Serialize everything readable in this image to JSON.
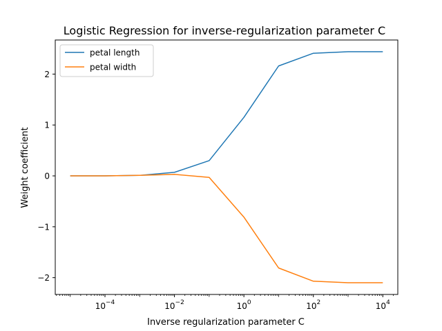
{
  "chart_data": {
    "type": "line",
    "title": "Logistic Regression for inverse-regularization parameter C",
    "xlabel": "Inverse regularization parameter C",
    "ylabel": "Weight coefficient",
    "x_scale": "log",
    "x": [
      1e-05,
      0.0001,
      0.001,
      0.01,
      0.1,
      1,
      10,
      100,
      1000,
      10000
    ],
    "xlim": [
      3.7e-06,
      27000
    ],
    "ylim": [
      -2.33,
      2.67
    ],
    "xticks": [
      {
        "value": 0.0001,
        "base": "10",
        "exp": "−4"
      },
      {
        "value": 0.01,
        "base": "10",
        "exp": "−2"
      },
      {
        "value": 1,
        "base": "10",
        "exp": "0"
      },
      {
        "value": 100,
        "base": "10",
        "exp": "2"
      },
      {
        "value": 10000,
        "base": "10",
        "exp": "4"
      }
    ],
    "yticks": [
      {
        "value": -2,
        "label": "−2"
      },
      {
        "value": -1,
        "label": "−1"
      },
      {
        "value": 0,
        "label": "0"
      },
      {
        "value": 1,
        "label": "1"
      },
      {
        "value": 2,
        "label": "2"
      }
    ],
    "grid": false,
    "legend_position": "top-left",
    "series": [
      {
        "name": "petal length",
        "color": "#1f77b4",
        "values": [
          0.0,
          0.0,
          0.01,
          0.07,
          0.3,
          1.15,
          2.16,
          2.41,
          2.44,
          2.44
        ]
      },
      {
        "name": "petal width",
        "color": "#ff7f0e",
        "values": [
          0.0,
          0.0,
          0.01,
          0.03,
          -0.03,
          -0.81,
          -1.81,
          -2.07,
          -2.1,
          -2.1
        ]
      }
    ]
  }
}
